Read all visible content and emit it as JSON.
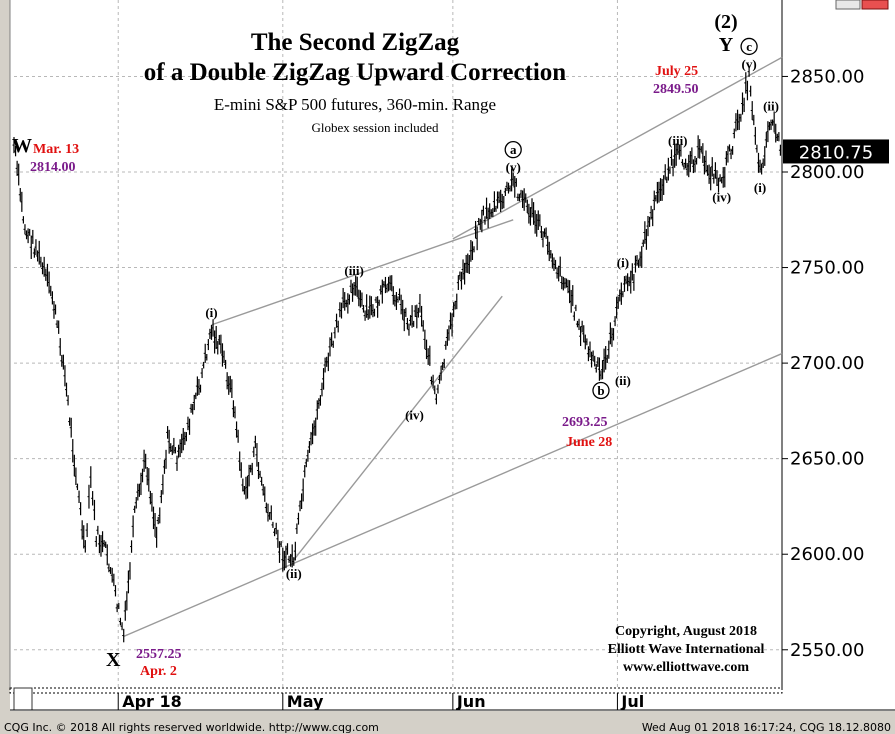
{
  "chart_data": {
    "type": "candlestick",
    "title": "The Second ZigZag",
    "title_line2": "of a Double ZigZag Upward Correction",
    "subtitle": "E-mini S&P 500 futures, 360-min. Range",
    "note": "Globex session included",
    "ylim": [
      2530,
      2890
    ],
    "yticks": [
      "2850.00",
      "2800.00",
      "2750.00",
      "2700.00",
      "2650.00",
      "2600.00",
      "2550.00"
    ],
    "ytick_values": [
      2850,
      2800,
      2750,
      2700,
      2650,
      2600,
      2550
    ],
    "current_price": "2810.75",
    "current_value": 2810.75,
    "xlim": [
      "2018-03-13",
      "2018-07-31"
    ],
    "xticks": [
      {
        "label": "Apr 18",
        "date": "2018-04-01"
      },
      {
        "label": "May",
        "date": "2018-05-01"
      },
      {
        "label": "Jun",
        "date": "2018-06-01"
      },
      {
        "label": "Jul",
        "date": "2018-07-01"
      }
    ],
    "price_path": [
      {
        "date": "2018-03-13",
        "value": 2814
      },
      {
        "date": "2018-03-15",
        "value": 2770
      },
      {
        "date": "2018-03-17",
        "value": 2760
      },
      {
        "date": "2018-03-20",
        "value": 2735
      },
      {
        "date": "2018-03-22",
        "value": 2700
      },
      {
        "date": "2018-03-24",
        "value": 2650
      },
      {
        "date": "2018-03-26",
        "value": 2600
      },
      {
        "date": "2018-03-27",
        "value": 2640
      },
      {
        "date": "2018-03-28",
        "value": 2610
      },
      {
        "date": "2018-03-30",
        "value": 2600
      },
      {
        "date": "2018-04-02",
        "value": 2557.25
      },
      {
        "date": "2018-04-04",
        "value": 2620
      },
      {
        "date": "2018-04-06",
        "value": 2650
      },
      {
        "date": "2018-04-08",
        "value": 2610
      },
      {
        "date": "2018-04-10",
        "value": 2660
      },
      {
        "date": "2018-04-12",
        "value": 2650
      },
      {
        "date": "2018-04-14",
        "value": 2670
      },
      {
        "date": "2018-04-16",
        "value": 2690
      },
      {
        "date": "2018-04-18",
        "value": 2718
      },
      {
        "date": "2018-04-20",
        "value": 2705
      },
      {
        "date": "2018-04-22",
        "value": 2680
      },
      {
        "date": "2018-04-24",
        "value": 2630
      },
      {
        "date": "2018-04-26",
        "value": 2655
      },
      {
        "date": "2018-04-28",
        "value": 2625
      },
      {
        "date": "2018-05-01",
        "value": 2600
      },
      {
        "date": "2018-05-03",
        "value": 2597
      },
      {
        "date": "2018-05-05",
        "value": 2640
      },
      {
        "date": "2018-05-07",
        "value": 2670
      },
      {
        "date": "2018-05-09",
        "value": 2700
      },
      {
        "date": "2018-05-12",
        "value": 2730
      },
      {
        "date": "2018-05-14",
        "value": 2742
      },
      {
        "date": "2018-05-16",
        "value": 2725
      },
      {
        "date": "2018-05-18",
        "value": 2730
      },
      {
        "date": "2018-05-20",
        "value": 2740
      },
      {
        "date": "2018-05-22",
        "value": 2735
      },
      {
        "date": "2018-05-24",
        "value": 2720
      },
      {
        "date": "2018-05-26",
        "value": 2730
      },
      {
        "date": "2018-05-29",
        "value": 2680
      },
      {
        "date": "2018-05-31",
        "value": 2710
      },
      {
        "date": "2018-06-02",
        "value": 2740
      },
      {
        "date": "2018-06-04",
        "value": 2755
      },
      {
        "date": "2018-06-06",
        "value": 2775
      },
      {
        "date": "2018-06-08",
        "value": 2780
      },
      {
        "date": "2018-06-10",
        "value": 2785
      },
      {
        "date": "2018-06-12",
        "value": 2795
      },
      {
        "date": "2018-06-14",
        "value": 2785
      },
      {
        "date": "2018-06-16",
        "value": 2775
      },
      {
        "date": "2018-06-18",
        "value": 2765
      },
      {
        "date": "2018-06-20",
        "value": 2750
      },
      {
        "date": "2018-06-22",
        "value": 2740
      },
      {
        "date": "2018-06-24",
        "value": 2720
      },
      {
        "date": "2018-06-26",
        "value": 2705
      },
      {
        "date": "2018-06-28",
        "value": 2693.25
      },
      {
        "date": "2018-06-30",
        "value": 2715
      },
      {
        "date": "2018-07-02",
        "value": 2740
      },
      {
        "date": "2018-07-04",
        "value": 2745
      },
      {
        "date": "2018-07-06",
        "value": 2765
      },
      {
        "date": "2018-07-08",
        "value": 2785
      },
      {
        "date": "2018-07-10",
        "value": 2800
      },
      {
        "date": "2018-07-12",
        "value": 2808
      },
      {
        "date": "2018-07-14",
        "value": 2805
      },
      {
        "date": "2018-07-16",
        "value": 2810
      },
      {
        "date": "2018-07-18",
        "value": 2800
      },
      {
        "date": "2018-07-20",
        "value": 2795
      },
      {
        "date": "2018-07-22",
        "value": 2815
      },
      {
        "date": "2018-07-25",
        "value": 2849.5
      },
      {
        "date": "2018-07-27",
        "value": 2800
      },
      {
        "date": "2018-07-29",
        "value": 2828
      },
      {
        "date": "2018-07-31",
        "value": 2812
      }
    ],
    "trend_lines": [
      {
        "name": "lower-channel",
        "from": {
          "date": "2018-04-02",
          "value": 2557
        },
        "to": {
          "date": "2018-07-31",
          "value": 2705
        }
      },
      {
        "name": "upper-channel",
        "from": {
          "date": "2018-06-01",
          "value": 2765
        },
        "to": {
          "date": "2018-07-31",
          "value": 2860
        }
      },
      {
        "name": "wave-line-i-iii",
        "from": {
          "date": "2018-04-18",
          "value": 2720
        },
        "to": {
          "date": "2018-06-12",
          "value": 2775
        }
      },
      {
        "name": "wave-line-ii-iv",
        "from": {
          "date": "2018-05-03",
          "value": 2597
        },
        "to": {
          "date": "2018-06-10",
          "value": 2735
        }
      }
    ],
    "wave_labels": [
      {
        "text": "(i)",
        "date": "2018-04-18",
        "value": 2720,
        "anchor": "above"
      },
      {
        "text": "(ii)",
        "date": "2018-05-03",
        "value": 2597,
        "anchor": "below"
      },
      {
        "text": "(iii)",
        "date": "2018-05-14",
        "value": 2742,
        "anchor": "above"
      },
      {
        "text": "(iv)",
        "date": "2018-05-25",
        "value": 2680,
        "anchor": "below"
      },
      {
        "text": "(v)",
        "date": "2018-06-12",
        "value": 2796,
        "anchor": "above"
      },
      {
        "text": "(i)",
        "date": "2018-07-02",
        "value": 2746,
        "anchor": "above"
      },
      {
        "text": "(ii)",
        "date": "2018-07-02",
        "value": 2698,
        "anchor": "below"
      },
      {
        "text": "(iii)",
        "date": "2018-07-12",
        "value": 2810,
        "anchor": "above"
      },
      {
        "text": "(iv)",
        "date": "2018-07-20",
        "value": 2794,
        "anchor": "below"
      },
      {
        "text": "(v)",
        "date": "2018-07-25",
        "value": 2850,
        "anchor": "above"
      },
      {
        "text": "(i)",
        "date": "2018-07-27",
        "value": 2799,
        "anchor": "below"
      },
      {
        "text": "(ii)",
        "date": "2018-07-29",
        "value": 2828,
        "anchor": "above"
      }
    ],
    "circle_labels": [
      {
        "text": "a",
        "date": "2018-06-12",
        "value": 2796
      },
      {
        "text": "b",
        "date": "2018-06-28",
        "value": 2693
      },
      {
        "text": "c",
        "date": "2018-07-25",
        "value": 2850
      }
    ],
    "annotations": {
      "w_label": "W",
      "w_date": "Mar. 13",
      "w_price": "2814.00",
      "x_label": "X",
      "x_price": "2557.25",
      "x_date": "Apr. 2",
      "b_price": "2693.25",
      "b_date": "June 28",
      "y_top": "(2)",
      "y_label": "Y",
      "y_date": "July 25",
      "y_price": "2849.50"
    },
    "copyright": [
      "Copyright, August 2018",
      "Elliott Wave International",
      "www.elliottwave.com"
    ],
    "grid": true
  },
  "footer": {
    "left": "CQG Inc. © 2018 All rights reserved worldwide. http://www.cqg.com",
    "right": "Wed Aug 01 2018 16:17:24, CQG 18.12.8080"
  },
  "colors": {
    "red": "#e01010",
    "purple": "#7a1a8a",
    "grid": "#b8b8b8",
    "trend": "#9a9a9a"
  }
}
